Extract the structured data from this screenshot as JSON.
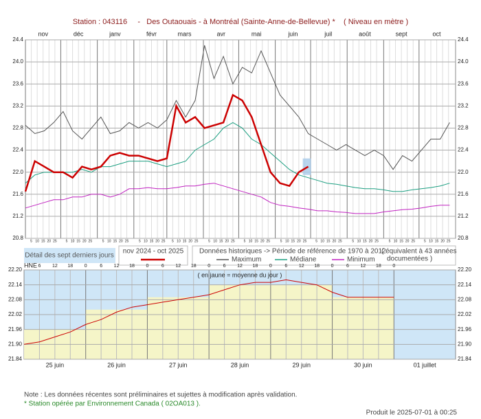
{
  "title": "Station : 043116     -   Des Outaouais - à Montréal (Sainte-Anne-de-Bellevue) *    ( Niveau en mètre )",
  "legend": {
    "detail": "Détail des sept derniers jours",
    "period": "nov 2024 - oct 2025",
    "historic": "Données historiques -> Période de référence  de 1970 à 2012",
    "equiv": "( équivalent à 43 années",
    "equiv2": "documentées )"
  },
  "note": "Note : Les données récentes sont préliminaires et sujettes à modification après validation.",
  "station_note": "* Station opérée par Environnement Canada ( 02OA013 ).",
  "produced": "Produit le 2025-07-01 à 00:25",
  "chart_data": [
    {
      "type": "line",
      "xlim": [
        0,
        365
      ],
      "xticks": [
        {
          "value": 0,
          "label": "nov"
        },
        {
          "value": 30,
          "label": "déc"
        },
        {
          "value": 61,
          "label": "janv"
        },
        {
          "value": 92,
          "label": "févr"
        },
        {
          "value": 120,
          "label": "mars"
        },
        {
          "value": 151,
          "label": "avr"
        },
        {
          "value": 181,
          "label": "mai"
        },
        {
          "value": 212,
          "label": "juin"
        },
        {
          "value": 242,
          "label": "juil"
        },
        {
          "value": 273,
          "label": "août"
        },
        {
          "value": 304,
          "label": "sept"
        },
        {
          "value": 334,
          "label": "oct"
        }
      ],
      "day_ticks": [
        5,
        10,
        15,
        20,
        25
      ],
      "ylim": [
        20.8,
        24.4
      ],
      "yticks": [
        20.8,
        21.2,
        21.6,
        {
          "value": 22.0,
          "label": "22.0"
        },
        22.4,
        22.8,
        23.2,
        23.6,
        {
          "value": 24.0,
          "label": "24.0"
        },
        24.4
      ],
      "grid": true,
      "x": [
        0,
        8,
        16,
        24,
        32,
        40,
        48,
        56,
        64,
        72,
        80,
        88,
        96,
        104,
        112,
        120,
        128,
        136,
        144,
        152,
        160,
        168,
        176,
        184,
        192,
        200,
        208,
        216,
        224,
        232,
        240,
        248,
        256,
        264,
        272,
        280,
        288,
        296,
        304,
        312,
        320,
        328,
        336,
        344,
        352,
        360
      ],
      "series": [
        {
          "name": "Maximum",
          "color": "#555555",
          "values": [
            22.85,
            22.7,
            22.75,
            22.9,
            23.1,
            22.75,
            22.6,
            22.8,
            23.0,
            22.7,
            22.75,
            22.9,
            22.8,
            22.9,
            22.8,
            22.95,
            23.3,
            23.0,
            23.3,
            24.3,
            23.7,
            24.1,
            23.6,
            23.9,
            23.8,
            24.2,
            23.8,
            23.4,
            23.2,
            23.0,
            22.7,
            22.6,
            22.5,
            22.4,
            22.5,
            22.4,
            22.3,
            22.4,
            22.3,
            22.05,
            22.3,
            22.2,
            22.4,
            22.6,
            22.6,
            22.9
          ]
        },
        {
          "name": "Médiane",
          "color": "#1a9e80",
          "values": [
            21.8,
            21.95,
            22.0,
            22.0,
            22.0,
            22.0,
            22.05,
            22.0,
            22.1,
            22.1,
            22.15,
            22.2,
            22.2,
            22.2,
            22.15,
            22.1,
            22.15,
            22.2,
            22.4,
            22.5,
            22.6,
            22.8,
            22.9,
            22.8,
            22.6,
            22.5,
            22.35,
            22.2,
            22.05,
            21.95,
            21.9,
            21.85,
            21.8,
            21.78,
            21.75,
            21.72,
            21.7,
            21.7,
            21.68,
            21.65,
            21.65,
            21.68,
            21.7,
            21.72,
            21.75,
            21.8
          ]
        },
        {
          "name": "Minimum",
          "color": "#c020c0",
          "values": [
            21.35,
            21.4,
            21.45,
            21.5,
            21.5,
            21.55,
            21.55,
            21.6,
            21.6,
            21.55,
            21.6,
            21.7,
            21.7,
            21.72,
            21.7,
            21.7,
            21.72,
            21.75,
            21.75,
            21.78,
            21.8,
            21.75,
            21.7,
            21.65,
            21.6,
            21.55,
            21.45,
            21.4,
            21.38,
            21.35,
            21.33,
            21.3,
            21.3,
            21.28,
            21.27,
            21.25,
            21.25,
            21.25,
            21.28,
            21.3,
            21.32,
            21.33,
            21.35,
            21.38,
            21.4,
            21.4
          ]
        },
        {
          "name": "nov 2024 - oct 2025",
          "color": "#cc0000",
          "values": [
            21.65,
            22.2,
            22.1,
            22.0,
            22.0,
            21.9,
            22.1,
            22.05,
            22.1,
            22.3,
            22.35,
            22.3,
            22.3,
            22.25,
            22.2,
            22.25,
            23.2,
            22.9,
            23.0,
            22.8,
            22.85,
            22.9,
            23.4,
            23.3,
            23.0,
            22.5,
            22.0,
            21.8,
            21.75,
            22.0,
            22.1,
            null,
            null,
            null,
            null,
            null,
            null,
            null,
            null,
            null,
            null,
            null,
            null,
            null,
            null,
            null
          ]
        }
      ]
    },
    {
      "type": "line",
      "annotation": "( en jaune = moyenne du jour )",
      "hour_label": "HNE",
      "categories": [
        "25 juin",
        "26 juin",
        "27 juin",
        "28 juin",
        "29 juin",
        "30 juin",
        "01 juillet"
      ],
      "daily_mean": [
        21.96,
        22.04,
        22.09,
        22.14,
        22.14,
        22.09
      ],
      "xlim": [
        0,
        168
      ],
      "xticks": [
        6,
        12,
        18,
        {
          "value": 24,
          "label": "0"
        },
        {
          "value": 30,
          "label": "6"
        },
        {
          "value": 36,
          "label": "12"
        },
        {
          "value": 42,
          "label": "18"
        },
        {
          "value": 48,
          "label": "0"
        },
        {
          "value": 54,
          "label": "6"
        },
        {
          "value": 60,
          "label": "12"
        },
        {
          "value": 66,
          "label": "18"
        },
        {
          "value": 72,
          "label": "0"
        },
        {
          "value": 78,
          "label": "6"
        },
        {
          "value": 84,
          "label": "12"
        },
        {
          "value": 90,
          "label": "18"
        },
        {
          "value": 96,
          "label": "0"
        },
        {
          "value": 102,
          "label": "6"
        },
        {
          "value": 108,
          "label": "12"
        },
        {
          "value": 114,
          "label": "18"
        },
        {
          "value": 120,
          "label": "0"
        },
        {
          "value": 126,
          "label": "6"
        },
        {
          "value": 132,
          "label": "12"
        },
        {
          "value": 138,
          "label": "18"
        },
        {
          "value": 144,
          "label": "0"
        }
      ],
      "ylim": [
        21.84,
        22.2
      ],
      "yticks": [
        21.84,
        {
          "value": 21.9,
          "label": "21.90"
        },
        21.96,
        22.02,
        22.08,
        22.14,
        {
          "value": 22.2,
          "label": "22.20"
        }
      ],
      "grid": true,
      "x": [
        0,
        6,
        12,
        18,
        24,
        30,
        36,
        42,
        48,
        54,
        60,
        66,
        72,
        78,
        84,
        90,
        96,
        102,
        108,
        114,
        120,
        126,
        132,
        138,
        144
      ],
      "series": [
        {
          "name": "niveau",
          "color": "#cc0000",
          "values": [
            21.9,
            21.91,
            21.93,
            21.95,
            21.98,
            22.0,
            22.03,
            22.05,
            22.06,
            22.07,
            22.08,
            22.09,
            22.1,
            22.12,
            22.14,
            22.15,
            22.15,
            22.16,
            22.15,
            22.14,
            22.11,
            22.09,
            22.09,
            22.09,
            22.09
          ]
        }
      ]
    }
  ]
}
